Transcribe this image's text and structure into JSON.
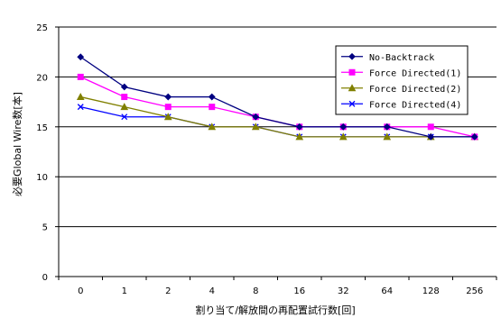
{
  "chart_data": {
    "type": "line",
    "xlabel": "割り当て/解放間の再配置試行数[回]",
    "ylabel": "必要Global Wire数[本]",
    "categories": [
      "0",
      "1",
      "2",
      "4",
      "8",
      "16",
      "32",
      "64",
      "128",
      "256"
    ],
    "ylim": [
      0,
      25
    ],
    "yticks": [
      0,
      5,
      10,
      15,
      20,
      25
    ],
    "grid": true,
    "legend_position": "top-right",
    "series": [
      {
        "name": "No-Backtrack",
        "color": "#000080",
        "marker": "diamond",
        "values": [
          22,
          19,
          18,
          18,
          16,
          15,
          15,
          15,
          14,
          14
        ]
      },
      {
        "name": "Force Directed(1)",
        "color": "#ff00ff",
        "marker": "square",
        "values": [
          20,
          18,
          17,
          17,
          16,
          15,
          15,
          15,
          15,
          14
        ]
      },
      {
        "name": "Force Directed(2)",
        "color": "#808000",
        "marker": "triangle",
        "values": [
          18,
          17,
          16,
          15,
          15,
          14,
          14,
          14,
          14,
          14
        ]
      },
      {
        "name": "Force Directed(4)",
        "color": "#0000ff",
        "marker": "x",
        "values": [
          17,
          16,
          16,
          15,
          15,
          14,
          14,
          14,
          14,
          14
        ]
      }
    ]
  }
}
